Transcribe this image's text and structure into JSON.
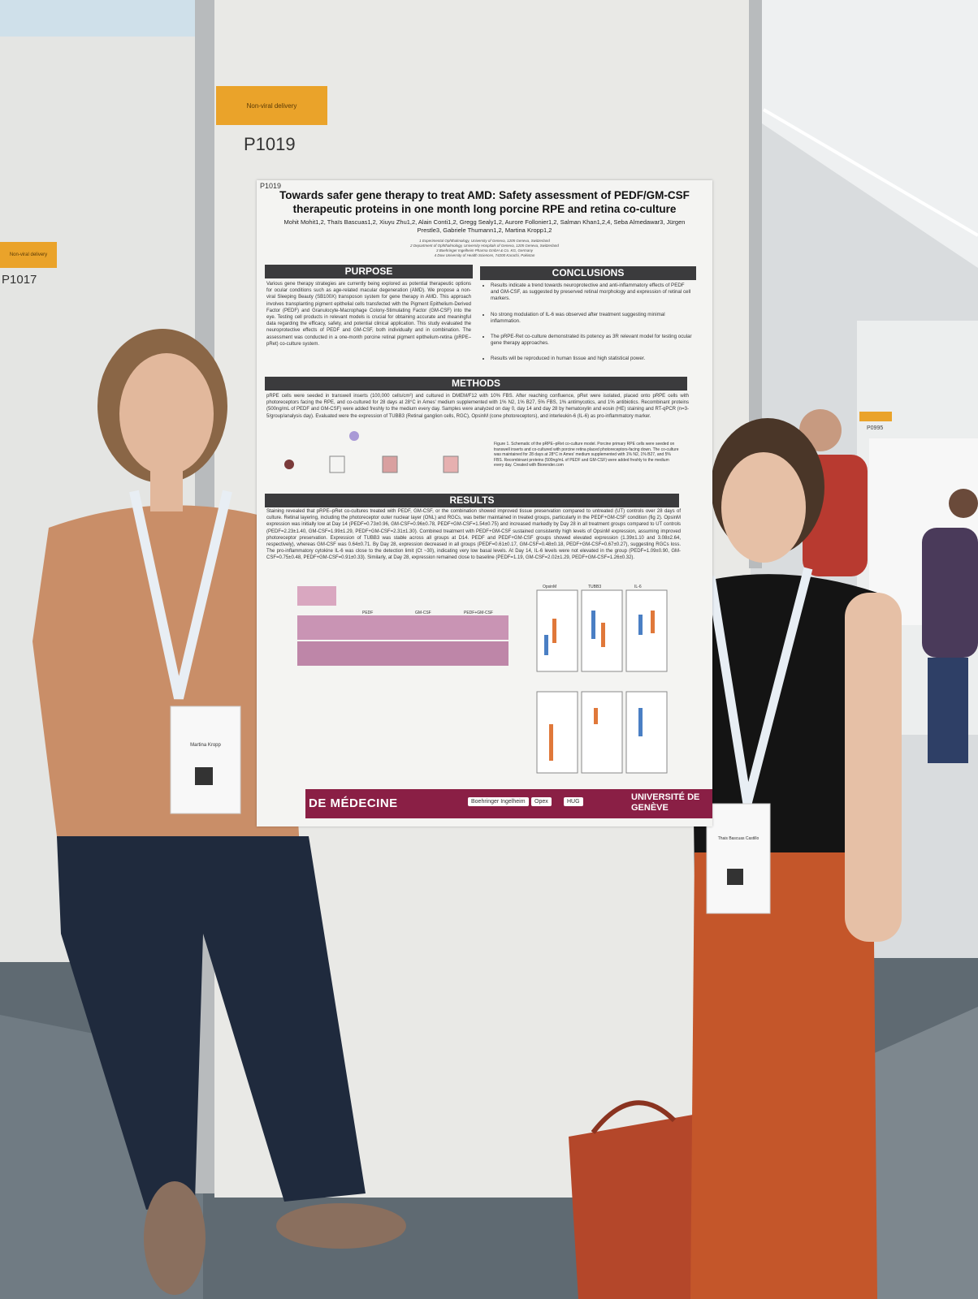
{
  "booth_signs": [
    {
      "category": "Non-viral delivery",
      "number": "P1019"
    },
    {
      "category": "Non-viral delivery",
      "number": "P1017"
    }
  ],
  "neighbor_sign": "P0995",
  "poster": {
    "id": "P1019",
    "title": "Towards safer gene therapy to treat AMD: Safety assessment of PEDF/GM-CSF therapeutic proteins in one month long porcine RPE and retina co-culture",
    "authors": "Mohit Mohit1,2, Thaïs Bascuas1,2, Xiuyu Zhu1,2, Alain Conti1,2, Gregg Sealy1,2, Aurore Follonier1,2, Salman Khan1,2,4, Seba Almedawar3, Jürgen Prestle3, Gabriele Thumann1,2, Martina Kropp1,2",
    "affiliations": [
      "1 Experimental Ophthalmology, University of Geneva, 1205 Geneva, Switzerland",
      "2 Department of Ophthalmology, University Hospitals of Geneva, 1205 Geneva, Switzerland",
      "3 Boehringer Ingelheim Pharma GmbH & Co. KG, Germany",
      "4 Dow University of Health Sciences, 74200 Karachi, Pakistan"
    ],
    "purpose": {
      "heading": "PURPOSE",
      "text": "Various gene therapy strategies are currently being explored as potential therapeutic options for ocular conditions such as age-related macular degeneration (AMD). We propose a non-viral Sleeping Beauty (SB100X) transposon system for gene therapy in AMD. This approach involves transplanting pigment epithelial cells transfected with the Pigment Epithelium-Derived Factor (PEDF) and Granulocyte-Macrophage Colony-Stimulating Factor (GM-CSF) into the eye. Testing cell products in relevant models is crucial for obtaining accurate and meaningful data regarding the efficacy, safety, and potential clinical application. This study evaluated the neuroprotective effects of PEDF and GM-CSF, both individually and in combination. The assessment was conducted in a one-month porcine retinal pigment epithelium-retina (pRPE–pRet) co-culture system."
    },
    "conclusions": {
      "heading": "CONCLUSIONS",
      "items": [
        "Results indicate a trend towards neuroprotective and anti-inflammatory effects of PEDF and GM-CSF, as suggested by preserved retinal morphology and expression of retinal cell markers.",
        "No strong modulation of IL-6 was observed after treatment suggesting minimal inflammation.",
        "The pRPE-Ret co-culture demonstrated its potency as 3R relevant model for testing ocular gene therapy approaches.",
        "Results will be reproduced in human tissue and high statistical power."
      ]
    },
    "methods": {
      "heading": "METHODS",
      "text": "pRPE cells were seeded in transwell inserts (100,000 cells/cm²) and cultured in DMEM/F12 with 10% FBS. After reaching confluence, pRet were isolated, placed onto pRPE cells with photoreceptors facing the RPE, and co-cultured for 28 days at 28°C in Ames' medium supplemented with 1% N2, 1% B27, 5% FBS, 1% antimycotics, and 1% antibiotics. Recombinant proteins (500ng/mL of PEDF and GM-CSF) were added freshly to the medium every day. Samples were analyzed on day 0, day 14 and day 28 by hematoxylin and eosin (HE) staining and RT-qPCR (n=3-5/group/analysis day). Evaluated were the expression of TUBB3 (Retinal ganglion cells, RGC), OpsinM (cone photoreceptors), and interleukin-6 (IL-6) as pro-inflammatory marker.",
      "figure_caption": "Figure 1. Schematic of the pRPE–pRet co-culture model. Porcine primary RPE cells were seeded on transwell inserts and co-cultured with porcine retina placed photoreceptors-facing down. The co-culture was maintained for 28 days at 28°C in Ames' medium supplemented with 1% N2, 1% B27, and 5% FBS. Recombinant proteins (500ng/mL of PEDF and GM-CSF) were added freshly to the medium every day. Created with Biorender.com"
    },
    "results": {
      "heading": "RESULTS",
      "text": "Staining revealed that pRPE–pRet co-cultures treated with PEDF, GM-CSF, or the combination showed improved tissue preservation compared to untreated (UT) controls over 28 days of culture. Retinal layering, including the photoreceptor outer nuclear layer (ONL) and RGCs, was better maintained in treated groups, particularly in the PEDF+GM-CSF condition (fig 2). OpsinM expression was initially low at Day 14 (PEDF=0.73±0.96, GM-CSF=0.96±0.78, PEDF+GM-CSF=1.54±0.75) and increased markedly by Day 28 in all treatment groups compared to UT controls (PEDF=2.23±1.40, GM-CSF=1.99±1.29, PEDF+GM-CSF=2.31±1.30). Combined treatment with PEDF+GM-CSF sustained consistently high levels of OpsinM expression, assuming improved photoreceptor preservation. Expression of TUBB3 was stable across all groups at D14. PEDF and PEDF+GM-CSF groups showed elevated expression (1.39±1.10 and 3.08±2.64, respectively), whereas GM-CSF was 0.64±0.71. By Day 28, expression decreased in all groups (PEDF=0.61±0.17, GM-CSF=0.48±0.18, PEDF+GM-CSF=0.67±0.27), suggesting RGCs loss. The pro-inflammatory cytokine IL-6 was close to the detection limit (Ct ~30), indicating very low basal levels. At Day 14, IL-6 levels were not elevated in the group (PEDF=1.09±0.90, GM-CSF=0.75±0.48, PEDF+GM-CSF=0.91±0.33). Similarly, at Day 28, expression remained close to baseline (PEDF=1.19, GM-CSF=2.02±1.29, PEDF+GM-CSF=1.26±0.32).",
      "panel_labels": [
        "PEDF",
        "GM-CSF",
        "PEDF+GM-CSF",
        "OpsinM",
        "TUBB3",
        "IL-6"
      ]
    },
    "footer": {
      "left": "DE MÉDECINE",
      "partners": [
        "Boehringer Ingelheim",
        "Opex",
        "HUG"
      ],
      "right": "UNIVERSITÉ DE GENÈVE"
    }
  },
  "badges": [
    {
      "name": "Martina Kropp"
    },
    {
      "name": "Thais Bascuas Castillo"
    }
  ]
}
